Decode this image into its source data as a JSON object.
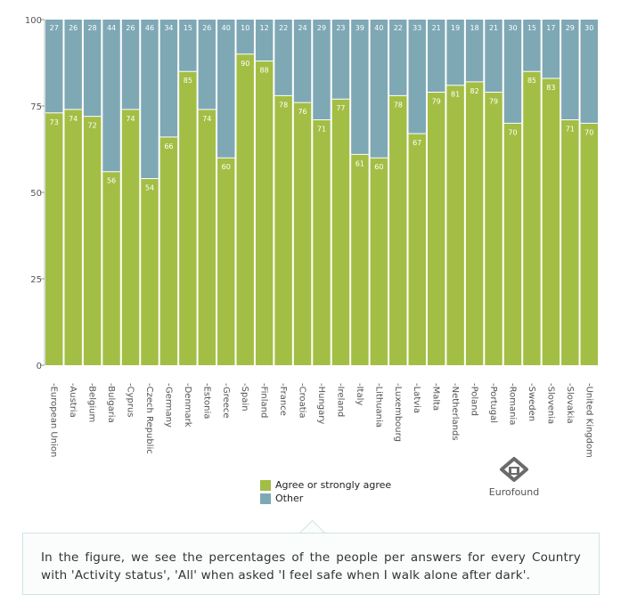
{
  "chart_data": {
    "type": "bar",
    "stacked": true,
    "categories": [
      "European Union",
      "Austria",
      "Belgium",
      "Bulgaria",
      "Cyprus",
      "Czech Republic",
      "Germany",
      "Denmark",
      "Estonia",
      "Greece",
      "Spain",
      "Finland",
      "France",
      "Croatia",
      "Hungary",
      "Ireland",
      "Italy",
      "Lithuania",
      "Luxembourg",
      "Latvia",
      "Malta",
      "Netherlands",
      "Poland",
      "Portugal",
      "Romania",
      "Sweden",
      "Slovenia",
      "Slovakia",
      "United Kingdom"
    ],
    "series": [
      {
        "name": "Agree or strongly agree",
        "color": "#a3be44",
        "values": [
          73,
          74,
          72,
          56,
          74,
          54,
          66,
          85,
          74,
          60,
          90,
          88,
          78,
          76,
          71,
          77,
          61,
          60,
          78,
          67,
          79,
          81,
          82,
          79,
          70,
          85,
          83,
          71,
          70
        ]
      },
      {
        "name": "Other",
        "color": "#7fa8b5",
        "values": [
          27,
          26,
          28,
          44,
          26,
          46,
          34,
          15,
          26,
          40,
          10,
          12,
          22,
          24,
          29,
          23,
          39,
          40,
          22,
          33,
          21,
          19,
          18,
          21,
          30,
          15,
          17,
          29,
          30
        ]
      }
    ],
    "yticks": [
      "0",
      "25",
      "50",
      "75",
      "100"
    ],
    "ylim": [
      0,
      100
    ],
    "legend_position": "bottom-center"
  },
  "legend": {
    "items": [
      {
        "label": "Agree or strongly agree",
        "color": "#a3be44"
      },
      {
        "label": "Other",
        "color": "#7fa8b5"
      }
    ]
  },
  "logo": {
    "text": "Eurofound"
  },
  "caption": {
    "text": "In the figure, we see the percentages of the people per answers for every Country with 'Activity status', 'All' when asked 'I feel safe when I walk alone after dark'."
  }
}
